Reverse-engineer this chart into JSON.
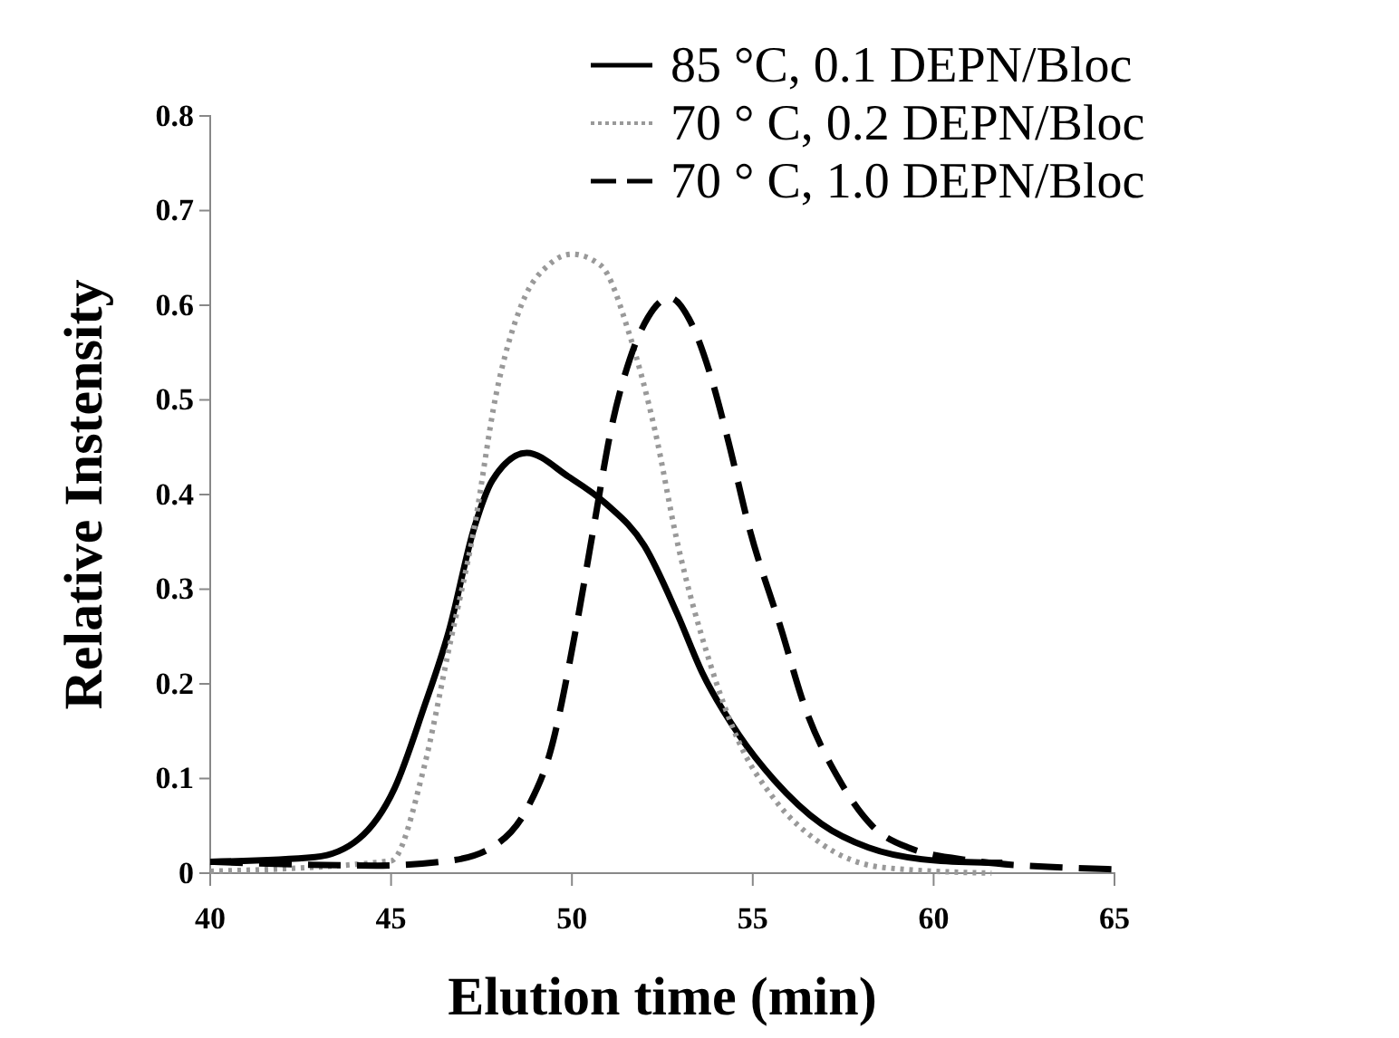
{
  "chart_data": {
    "type": "line",
    "xlabel": "Elution time (min)",
    "ylabel": "Relative Instensity",
    "xlim": [
      40,
      65
    ],
    "xticks": [
      40,
      45,
      50,
      55,
      60,
      65
    ],
    "ylim": [
      0,
      0.8
    ],
    "yticks": [
      0,
      0.1,
      0.2,
      0.3,
      0.4,
      0.5,
      0.6,
      0.7,
      0.8
    ],
    "grid": false,
    "legend": "top right",
    "marker": "none",
    "series": [
      {
        "name": "85 °C, 0.1 DEPN/Bloc",
        "color": "#000000",
        "line_style": "solid",
        "x": [
          40,
          42.9,
          44.1,
          45.1,
          45.9,
          46.6,
          47.3,
          47.8,
          48.75,
          49.9,
          50.95,
          52,
          52.9,
          53.6,
          54.6,
          55.6,
          56.9,
          58.2,
          60.2,
          61.9
        ],
        "values": [
          0.012,
          0.017,
          0.036,
          0.09,
          0.174,
          0.256,
          0.365,
          0.415,
          0.444,
          0.419,
          0.39,
          0.346,
          0.275,
          0.212,
          0.147,
          0.098,
          0.052,
          0.027,
          0.013,
          0.011
        ]
      },
      {
        "name": "70 ° C, 0.2 DEPN/Bloc",
        "color": "#999999",
        "line_style": "dotted",
        "x": [
          40,
          45,
          45.9,
          46.6,
          47.3,
          47.9,
          48.6,
          49.4,
          50,
          50.8,
          51.6,
          52.3,
          52.9,
          53.8,
          54.6,
          55.6,
          56.9,
          58.6,
          61.6
        ],
        "values": [
          0.002,
          0.013,
          0.11,
          0.237,
          0.365,
          0.505,
          0.6,
          0.644,
          0.654,
          0.642,
          0.568,
          0.467,
          0.352,
          0.224,
          0.14,
          0.078,
          0.031,
          0.006,
          0.0
        ]
      },
      {
        "name": "70 ° C, 1.0 DEPN/Bloc",
        "color": "#000000",
        "line_style": "dashed",
        "x": [
          40,
          44.6,
          46.6,
          47.9,
          48.8,
          49.4,
          50.1,
          50.6,
          51.1,
          51.6,
          52.1,
          52.7,
          53.3,
          53.8,
          54.3,
          54.9,
          55.8,
          56.4,
          57.4,
          58.3,
          59.3,
          61.1,
          63.6,
          65
        ],
        "values": [
          0.012,
          0.008,
          0.013,
          0.03,
          0.071,
          0.128,
          0.256,
          0.365,
          0.472,
          0.543,
          0.587,
          0.608,
          0.581,
          0.53,
          0.46,
          0.365,
          0.256,
          0.18,
          0.098,
          0.05,
          0.027,
          0.013,
          0.006,
          0.004
        ]
      }
    ]
  }
}
